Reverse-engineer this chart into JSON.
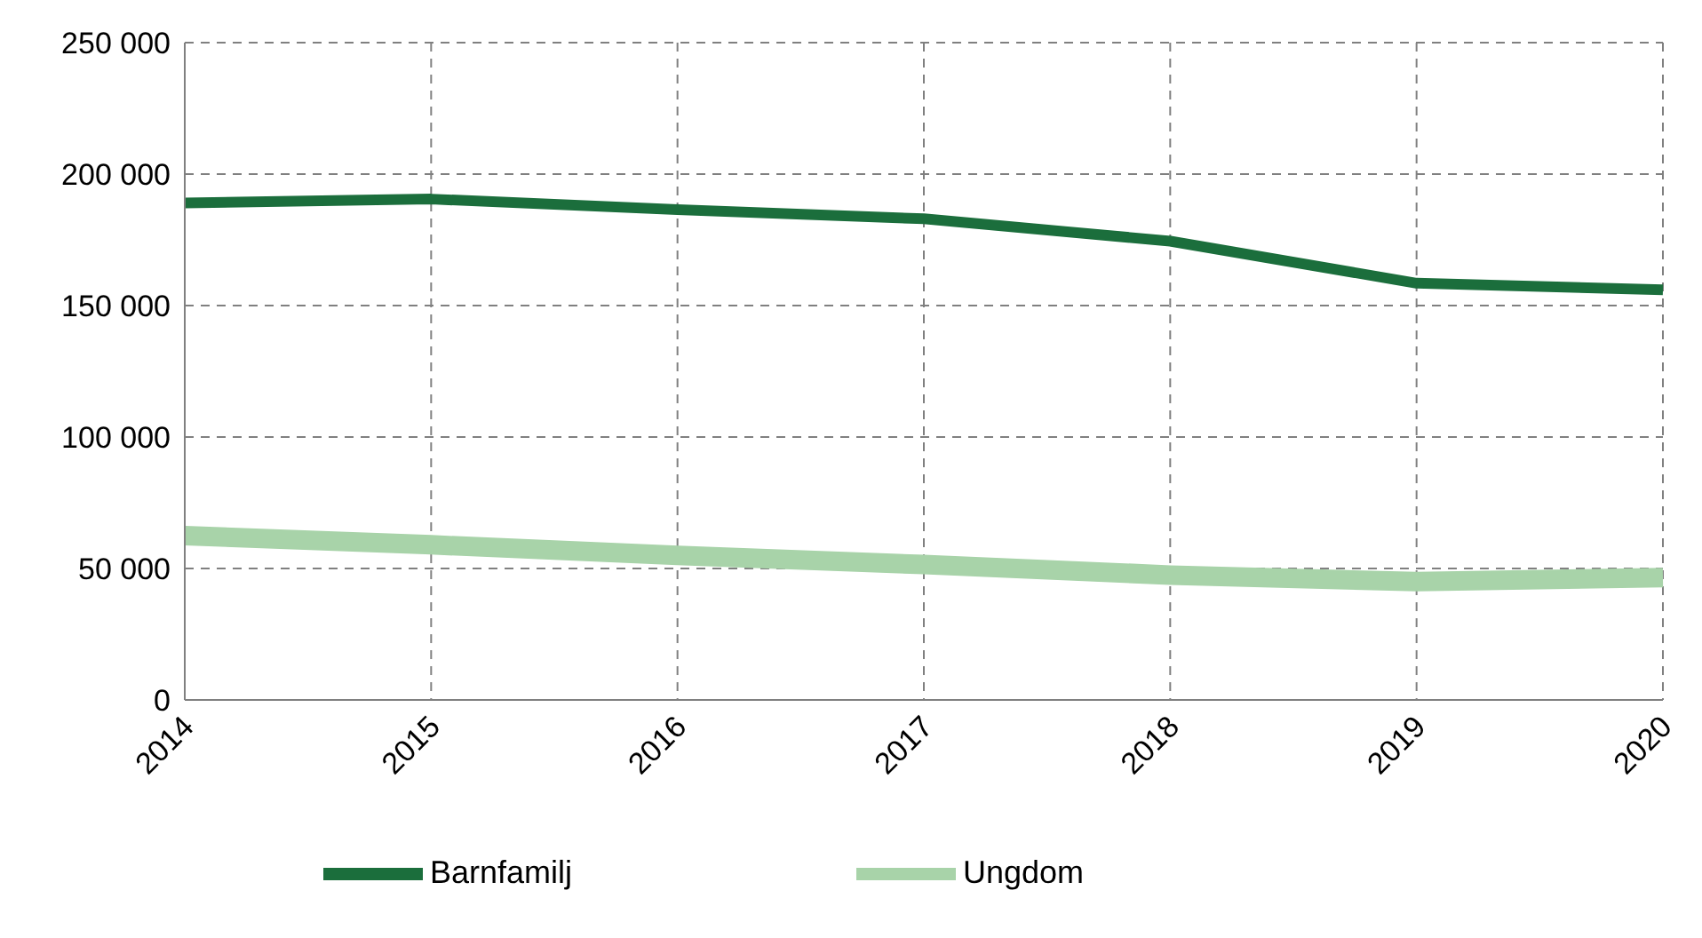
{
  "chart_data": {
    "type": "line",
    "categories": [
      "2014",
      "2015",
      "2016",
      "2017",
      "2018",
      "2019",
      "2020"
    ],
    "series": [
      {
        "name": "Barnfamilj",
        "color": "#1b6e3c",
        "values": [
          189000,
          190500,
          186500,
          183000,
          174500,
          158500,
          156000
        ]
      },
      {
        "name": "Ungdom",
        "color": "#a8d3a9",
        "values": [
          62500,
          59000,
          55000,
          51500,
          47500,
          45000,
          46500
        ]
      }
    ],
    "ylim": [
      0,
      250000
    ],
    "yticks": [
      {
        "value": 0,
        "label": "0"
      },
      {
        "value": 50000,
        "label": "50 000"
      },
      {
        "value": 100000,
        "label": "100 000"
      },
      {
        "value": 150000,
        "label": "150 000"
      },
      {
        "value": 200000,
        "label": "200 000"
      },
      {
        "value": 250000,
        "label": "250 000"
      }
    ],
    "grid": true,
    "legend": "bottom",
    "marker": "none",
    "line_style": "solid"
  }
}
